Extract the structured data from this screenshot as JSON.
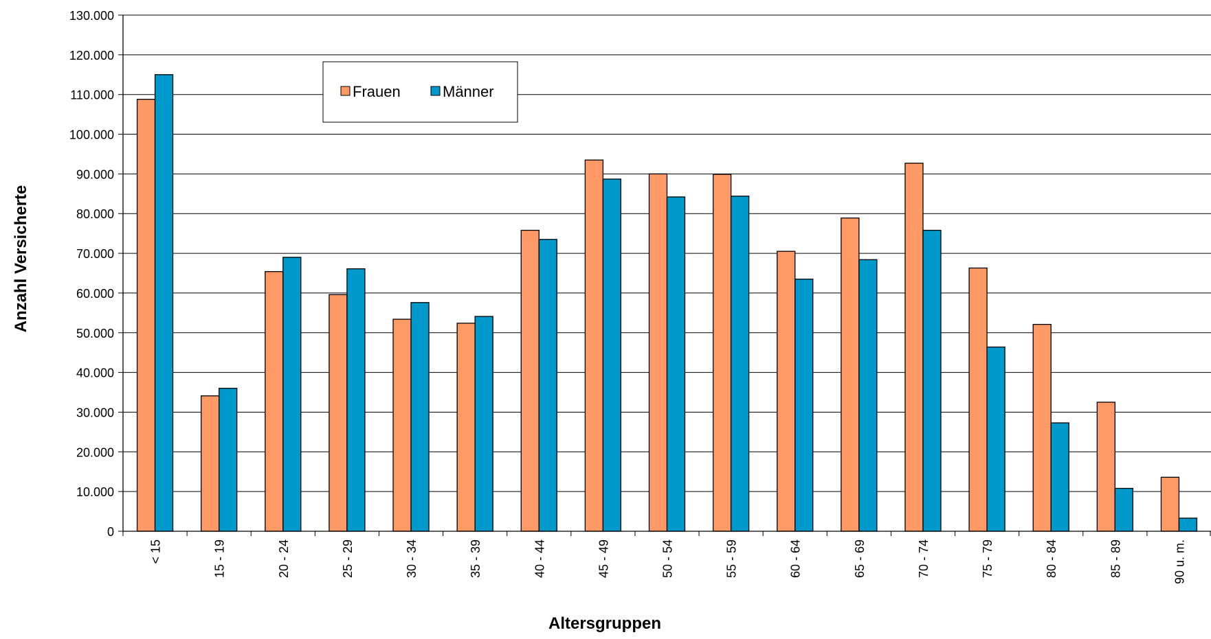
{
  "chart_data": {
    "type": "bar",
    "xlabel": "Altersgruppen",
    "ylabel": "Anzahl Versicherte",
    "ylim": [
      0,
      130000
    ],
    "ytick_values": [
      0,
      10000,
      20000,
      30000,
      40000,
      50000,
      60000,
      70000,
      80000,
      90000,
      100000,
      110000,
      120000,
      130000
    ],
    "ytick_labels": [
      "0",
      "10.000",
      "20.000",
      "30.000",
      "40.000",
      "50.000",
      "60.000",
      "70.000",
      "80.000",
      "90.000",
      "100.000",
      "110.000",
      "120.000",
      "130.000"
    ],
    "grid": true,
    "legend_position": "top-left",
    "categories": [
      "< 15",
      "15 - 19",
      "20 - 24",
      "25 - 29",
      "30 - 34",
      "35 - 39",
      "40 - 44",
      "45 - 49",
      "50 - 54",
      "55 - 59",
      "60 - 64",
      "65 - 69",
      "70 - 74",
      "75 - 79",
      "80 - 84",
      "85 - 89",
      "90 u. m."
    ],
    "series": [
      {
        "name": "Frauen",
        "color": "#ff9966",
        "values": [
          108800,
          34100,
          65400,
          59600,
          53400,
          52400,
          75800,
          93500,
          90000,
          89900,
          70500,
          78900,
          92700,
          66300,
          52100,
          32500,
          13600
        ]
      },
      {
        "name": "Männer",
        "color": "#0099cc",
        "values": [
          115000,
          36000,
          69000,
          66100,
          57600,
          54100,
          73500,
          88700,
          84200,
          84400,
          63500,
          68400,
          75800,
          46400,
          27300,
          10800,
          3300
        ]
      }
    ]
  }
}
